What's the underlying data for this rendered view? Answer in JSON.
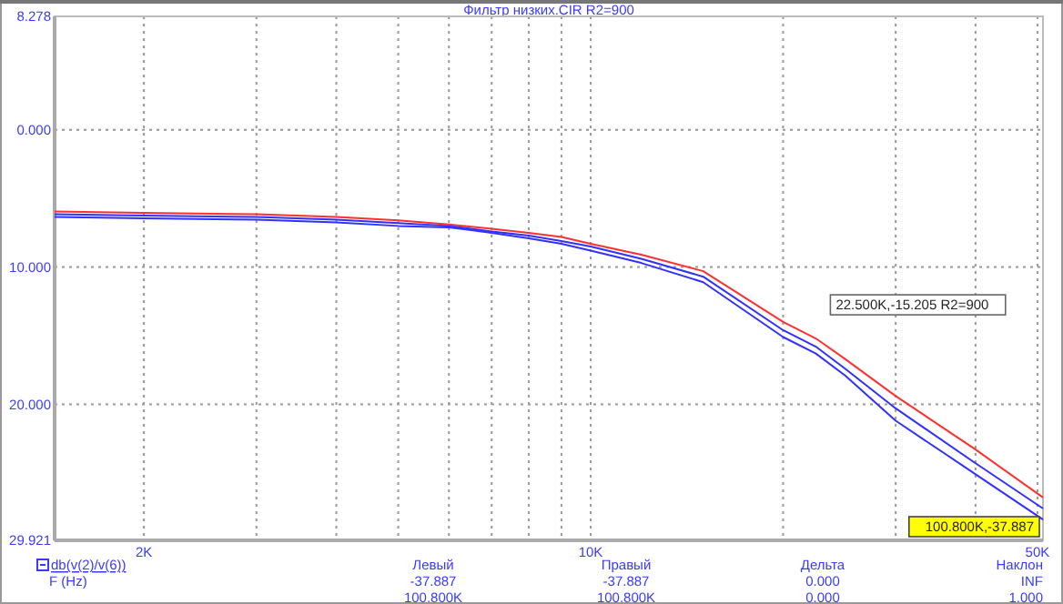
{
  "chart_data": {
    "type": "line",
    "title": "Фильтр низких.CIR R2=900",
    "xlabel": "F (Hz)",
    "log": "x",
    "grid": true,
    "line_style": "solid",
    "marker": "none",
    "xlim": [
      1450,
      51000
    ],
    "ylim": [
      -29.921,
      8.278
    ],
    "xticks": [
      {
        "value": 2000,
        "label": "2K"
      },
      {
        "value": 3000,
        "label": null
      },
      {
        "value": 4000,
        "label": null
      },
      {
        "value": 5000,
        "label": null
      },
      {
        "value": 6000,
        "label": null
      },
      {
        "value": 7000,
        "label": null
      },
      {
        "value": 8000,
        "label": null
      },
      {
        "value": 9000,
        "label": null
      },
      {
        "value": 10000,
        "label": "10K"
      },
      {
        "value": 20000,
        "label": null
      },
      {
        "value": 30000,
        "label": null
      },
      {
        "value": 40000,
        "label": null
      },
      {
        "value": 50000,
        "label": "50K"
      }
    ],
    "yticks": [
      {
        "value": 8.278,
        "label": "8.278"
      },
      {
        "value": 0,
        "label": "0.000"
      },
      {
        "value": -10,
        "label": "10.000"
      },
      {
        "value": -20,
        "label": "20.000"
      },
      {
        "value": -29.921,
        "label": "29.921"
      }
    ],
    "x": [
      1450,
      2000,
      3000,
      4000,
      5000,
      6000,
      7000,
      8000,
      9000,
      10000,
      12000,
      15000,
      20000,
      22500,
      25000,
      30000,
      40000,
      51000
    ],
    "series": [
      {
        "color": "#ff3030",
        "values": [
          -5.95,
          -6.05,
          -6.15,
          -6.35,
          -6.6,
          -6.9,
          -7.2,
          -7.5,
          -7.8,
          -8.3,
          -9.1,
          -10.3,
          -14.0,
          -15.2,
          -16.7,
          -19.4,
          -23.3,
          -26.8
        ]
      },
      {
        "color": "#3030ff",
        "values": [
          -6.15,
          -6.25,
          -6.35,
          -6.55,
          -6.8,
          -7.0,
          -7.4,
          -7.7,
          -8.1,
          -8.5,
          -9.4,
          -10.7,
          -14.6,
          -15.8,
          -17.4,
          -20.3,
          -24.3,
          -27.6
        ]
      },
      {
        "color": "#3030ff",
        "values": [
          -6.35,
          -6.45,
          -6.55,
          -6.75,
          -7.0,
          -7.1,
          -7.5,
          -7.9,
          -8.3,
          -8.8,
          -9.7,
          -11.1,
          -15.1,
          -16.3,
          -17.9,
          -21.2,
          -25.1,
          -28.4
        ]
      }
    ],
    "annotations": [
      {
        "text": "22.500K,-15.205 R2=900",
        "x": 22500,
        "y": -15.205
      },
      "100.800K,-37.887",
      "Левый",
      "-37.887",
      "100.800K",
      "Правый",
      "-37.887",
      "100.800K",
      "Дельта",
      "0.000",
      "0.000",
      "Наклон",
      "INF",
      "1.000",
      "db(v(2)/v(6))"
    ]
  }
}
